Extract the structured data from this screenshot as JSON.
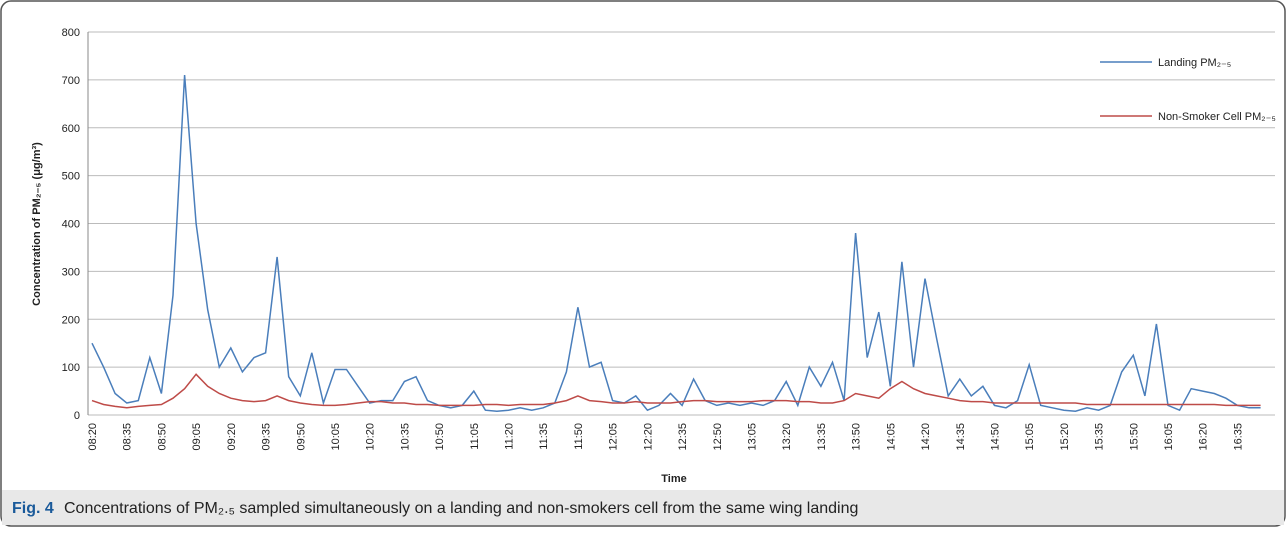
{
  "chart_data": {
    "type": "line",
    "y_axis_label": "Concentration of PM₂₋₅ (μg/m³)",
    "x_axis_label": "Time",
    "caption_label": "Fig. 4",
    "caption": "Concentrations of PM₂.₅ sampled simultaneously on a landing and non-smokers cell from the same wing landing",
    "categories": [
      "08:20",
      null,
      null,
      "08:35",
      null,
      null,
      "08:50",
      null,
      null,
      "09:05",
      null,
      null,
      "09:20",
      null,
      null,
      "09:35",
      null,
      null,
      "09:50",
      null,
      null,
      "10:05",
      null,
      null,
      "10:20",
      null,
      null,
      "10:35",
      null,
      null,
      "10:50",
      null,
      null,
      "11:05",
      null,
      null,
      "11:20",
      null,
      null,
      "11:35",
      null,
      null,
      "11:50",
      null,
      null,
      "12:05",
      null,
      null,
      "12:20",
      null,
      null,
      "12:35",
      null,
      null,
      "12:50",
      null,
      null,
      "13:05",
      null,
      null,
      "13:20",
      null,
      null,
      "13:35",
      null,
      null,
      "13:50",
      null,
      null,
      "14:05",
      null,
      null,
      "14:20",
      null,
      null,
      "14:35",
      null,
      null,
      "14:50",
      null,
      null,
      "15:05",
      null,
      null,
      "15:20",
      null,
      null,
      "15:35",
      null,
      null,
      "15:50",
      null,
      null,
      "16:05",
      null,
      null,
      "16:20",
      null,
      null,
      "16:35",
      null,
      null
    ],
    "series": [
      {
        "name": "Landing PM₂₋₅",
        "color": "#4a7ebb",
        "values": [
          150,
          100,
          45,
          25,
          30,
          120,
          45,
          250,
          710,
          400,
          220,
          100,
          140,
          90,
          120,
          130,
          330,
          80,
          40,
          130,
          25,
          95,
          95,
          60,
          25,
          30,
          30,
          70,
          80,
          30,
          20,
          15,
          20,
          50,
          10,
          8,
          10,
          15,
          10,
          15,
          25,
          90,
          225,
          100,
          110,
          30,
          25,
          40,
          10,
          20,
          45,
          20,
          75,
          30,
          20,
          25,
          20,
          25,
          20,
          30,
          70,
          20,
          100,
          60,
          110,
          30,
          380,
          120,
          215,
          60,
          320,
          100,
          285,
          160,
          40,
          75,
          40,
          60,
          20,
          15,
          30,
          105,
          20,
          15,
          10,
          8,
          15,
          10,
          20,
          90,
          125,
          40,
          190,
          20,
          10,
          55,
          50,
          45,
          35,
          20,
          15,
          15
        ]
      },
      {
        "name": "Non-Smoker Cell PM₂₋₅",
        "color": "#be4b48",
        "values": [
          30,
          22,
          18,
          15,
          18,
          20,
          22,
          35,
          55,
          85,
          60,
          45,
          35,
          30,
          28,
          30,
          40,
          30,
          25,
          22,
          20,
          20,
          22,
          25,
          28,
          28,
          25,
          25,
          22,
          22,
          20,
          20,
          20,
          20,
          22,
          22,
          20,
          22,
          22,
          22,
          25,
          30,
          40,
          30,
          28,
          25,
          25,
          28,
          25,
          25,
          25,
          28,
          30,
          30,
          28,
          28,
          28,
          28,
          30,
          30,
          30,
          28,
          28,
          25,
          25,
          30,
          45,
          40,
          35,
          55,
          70,
          55,
          45,
          40,
          35,
          30,
          28,
          28,
          25,
          25,
          25,
          25,
          25,
          25,
          25,
          25,
          22,
          22,
          22,
          22,
          22,
          22,
          22,
          22,
          22,
          22,
          22,
          22,
          20,
          20,
          20,
          20
        ]
      }
    ],
    "ylim": [
      0,
      800
    ],
    "yticks": [
      0,
      100,
      200,
      300,
      400,
      500,
      600,
      700,
      800
    ],
    "grid": true,
    "legend": "upper right"
  }
}
